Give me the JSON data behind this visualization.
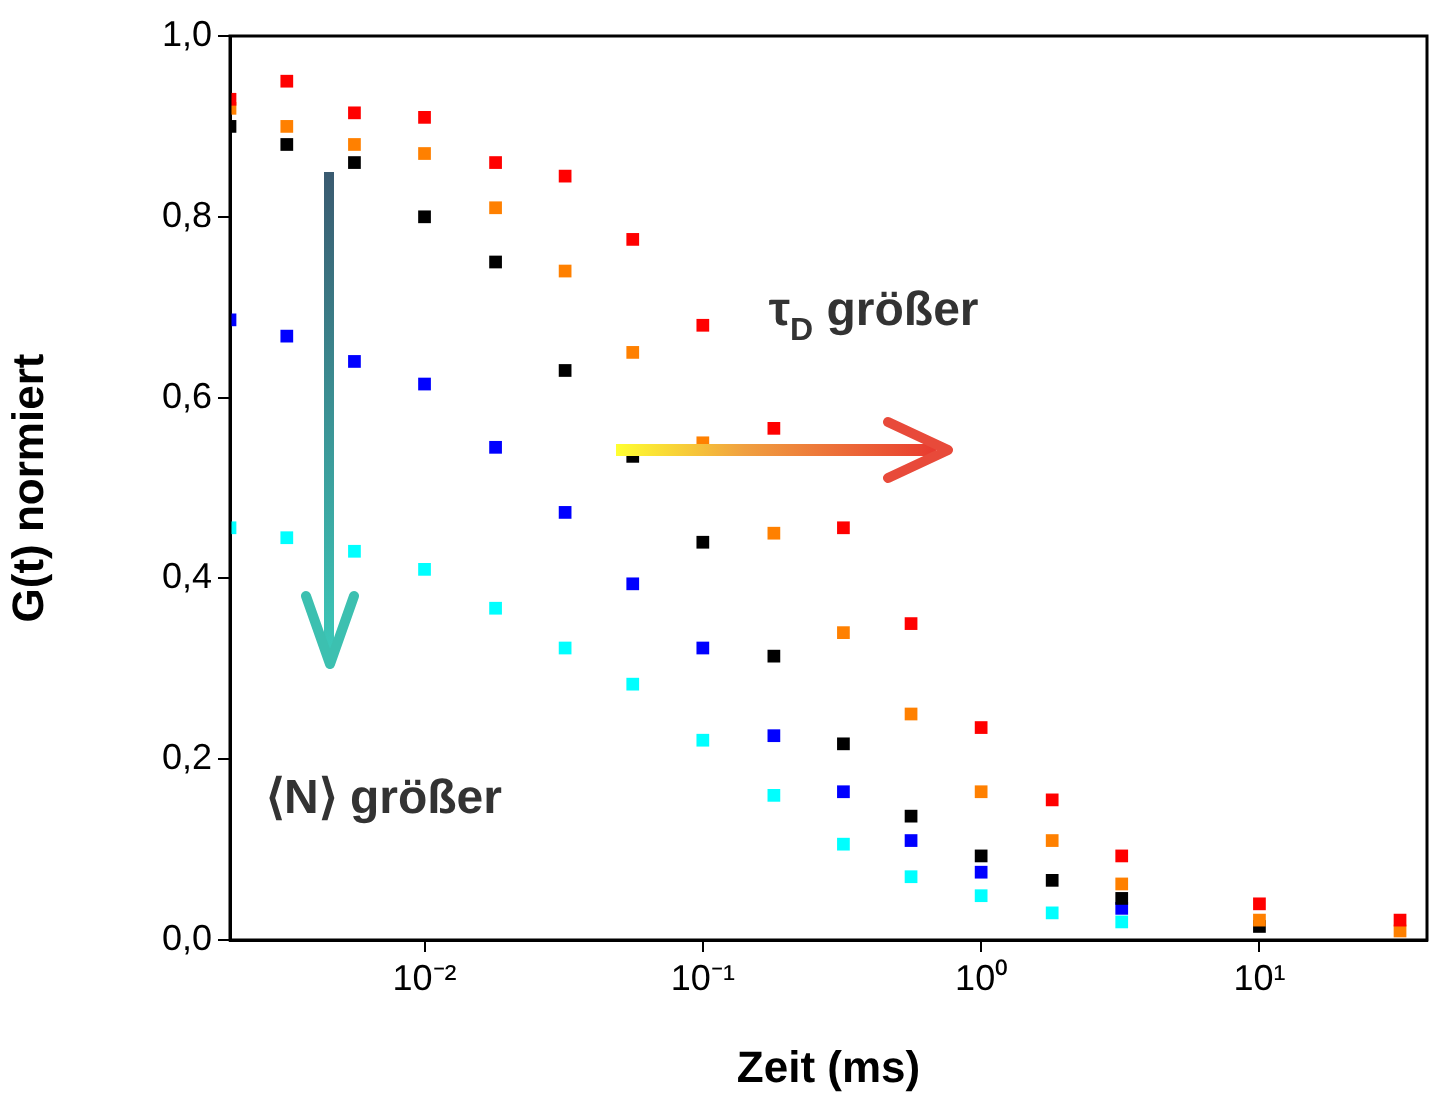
{
  "chart_data": {
    "type": "scatter",
    "xlabel": "Zeit (ms)",
    "ylabel": "G(t) normiert",
    "log": "x",
    "marker": "square",
    "grid": false,
    "legend": false,
    "x": [
      0.002,
      0.0032,
      0.0056,
      0.01,
      0.018,
      0.032,
      0.056,
      0.1,
      0.18,
      0.32,
      0.56,
      1,
      1.8,
      3.2,
      10,
      32
    ],
    "xlim": [
      0.002,
      40
    ],
    "ylim": [
      0,
      1
    ],
    "xticks": [
      {
        "value": 0.01,
        "label": "10⁻²"
      },
      {
        "value": 0.1,
        "label": "10⁻¹"
      },
      {
        "value": 1,
        "label": "10⁰"
      },
      {
        "value": 10,
        "label": "10¹"
      }
    ],
    "yticks": [
      {
        "value": 0,
        "label": "0,0"
      },
      {
        "value": 0.2,
        "label": "0,2"
      },
      {
        "value": 0.4,
        "label": "0,4"
      },
      {
        "value": 0.6,
        "label": "0,6"
      },
      {
        "value": 0.8,
        "label": "0,8"
      },
      {
        "value": 1,
        "label": "1,0"
      }
    ],
    "series": [
      {
        "color": "#ff0000",
        "values": [
          0.93,
          0.95,
          0.915,
          0.91,
          0.86,
          0.845,
          0.775,
          0.68,
          0.566,
          0.456,
          0.35,
          0.235,
          0.155,
          0.093,
          0.04,
          0.022
        ]
      },
      {
        "color": "#ff8000",
        "values": [
          0.92,
          0.9,
          0.88,
          0.87,
          0.81,
          0.74,
          0.65,
          0.55,
          0.45,
          0.34,
          0.25,
          0.164,
          0.11,
          0.062,
          0.022,
          0.01
        ]
      },
      {
        "color": "#000000",
        "values": [
          0.9,
          0.88,
          0.86,
          0.8,
          0.75,
          0.63,
          0.535,
          0.44,
          0.314,
          0.217,
          0.137,
          0.093,
          0.066,
          0.046,
          0.015,
          null
        ]
      },
      {
        "color": "#0000ff",
        "values": [
          0.686,
          0.668,
          0.64,
          0.615,
          0.545,
          0.473,
          0.394,
          0.323,
          0.226,
          0.164,
          0.11,
          0.075,
          null,
          0.035,
          null,
          null
        ]
      },
      {
        "color": "#00ffff",
        "values": [
          0.456,
          0.445,
          0.43,
          0.41,
          0.367,
          0.323,
          0.283,
          0.221,
          0.16,
          0.106,
          0.07,
          0.049,
          0.03,
          0.02,
          null,
          null
        ]
      }
    ],
    "annotations": [
      "τ$_{D}$ größer",
      "⟨N⟩ größer"
    ]
  }
}
